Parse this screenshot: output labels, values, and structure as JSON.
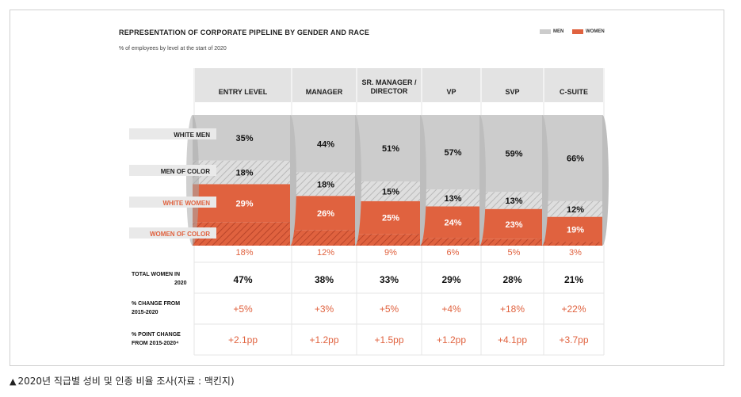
{
  "title": "REPRESENTATION OF CORPORATE PIPELINE BY GENDER AND RACE",
  "subtitle": "% of employees by level at the start of 2020",
  "legend": {
    "men": "MEN",
    "women": "WOMEN"
  },
  "colors": {
    "men": "#cccccc",
    "women": "#e0623f",
    "header": "#e3e3e3",
    "text_women": "#e0623f"
  },
  "caption": "2020년 직급별 성비 및 인종 비율 조사(자료 : 맥킨지)",
  "caption_icon": "up-triangle-icon",
  "chart_data": {
    "type": "table",
    "categories": [
      "ENTRY LEVEL",
      "MANAGER",
      "SR. MANAGER / DIRECTOR",
      "VP",
      "SVP",
      "C-SUITE"
    ],
    "segment_labels": [
      "WHITE MEN",
      "MEN OF COLOR",
      "WHITE WOMEN",
      "WOMEN OF COLOR"
    ],
    "series": [
      {
        "name": "WHITE MEN",
        "values": [
          35,
          44,
          51,
          57,
          59,
          66
        ]
      },
      {
        "name": "MEN OF COLOR",
        "values": [
          18,
          18,
          15,
          13,
          13,
          12
        ]
      },
      {
        "name": "WHITE WOMEN",
        "values": [
          29,
          26,
          25,
          24,
          23,
          19
        ]
      },
      {
        "name": "WOMEN OF COLOR",
        "values": [
          18,
          12,
          9,
          6,
          5,
          3
        ]
      }
    ],
    "series_text": {
      "white_men": [
        "35%",
        "44%",
        "51%",
        "57%",
        "59%",
        "66%"
      ],
      "men_of_color": [
        "18%",
        "18%",
        "15%",
        "13%",
        "13%",
        "12%"
      ],
      "white_women": [
        "29%",
        "26%",
        "25%",
        "24%",
        "23%",
        "19%"
      ],
      "women_of_color": [
        "18%",
        "12%",
        "9%",
        "6%",
        "5%",
        "3%"
      ]
    },
    "rows": [
      {
        "label": "TOTAL WOMEN IN 2020",
        "values": [
          "47%",
          "38%",
          "33%",
          "29%",
          "28%",
          "21%"
        ]
      },
      {
        "label": "% CHANGE FROM 2015-2020",
        "values": [
          "+5%",
          "+3%",
          "+5%",
          "+4%",
          "+18%",
          "+22%"
        ]
      },
      {
        "label": "% POINT CHANGE FROM 2015-2020⁴",
        "values": [
          "+2.1pp",
          "+1.2pp",
          "+1.5pp",
          "+1.2pp",
          "+4.1pp",
          "+3.7pp"
        ]
      }
    ]
  }
}
